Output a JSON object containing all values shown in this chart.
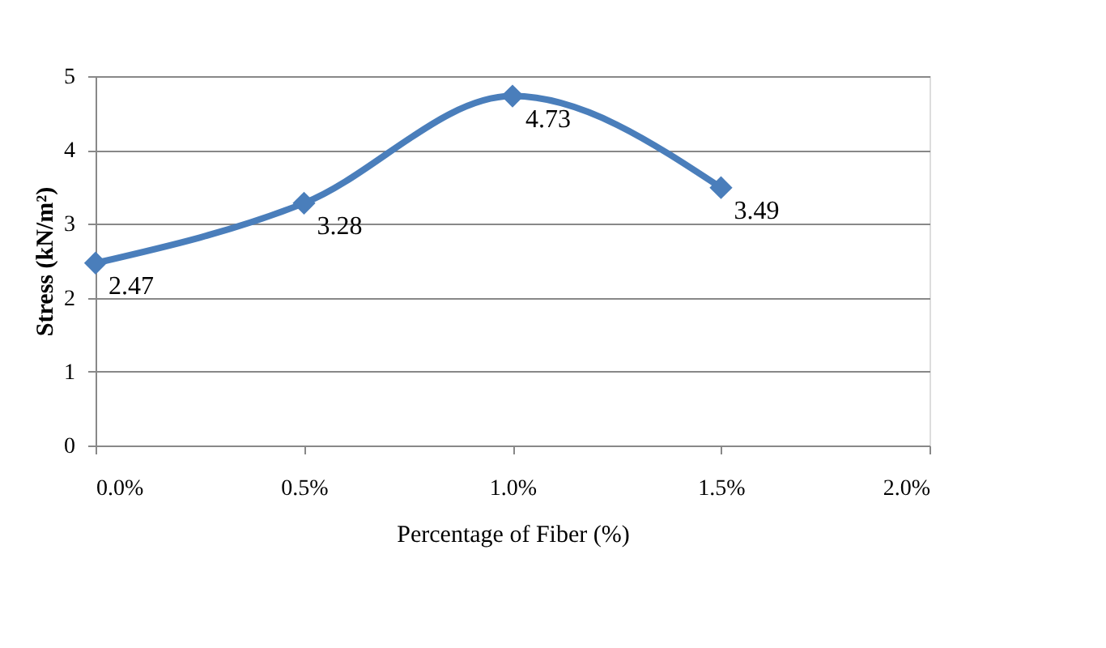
{
  "chart_data": {
    "type": "line",
    "xlabel": "Percentage of Fiber (%)",
    "ylabel": "Stress (kN/m²)",
    "categories": [
      "0.0%",
      "0.5%",
      "1.0%",
      "1.5%",
      "2.0%"
    ],
    "series": [
      {
        "color": "#4a7ebb",
        "values": [
          2.47,
          3.28,
          4.73,
          3.49,
          null
        ]
      }
    ],
    "ylim": [
      0,
      5
    ],
    "yticks": [
      0,
      1,
      2,
      3,
      4,
      5
    ],
    "grid": "y",
    "marker": "diamond",
    "line_style": "solid",
    "data_labels": true,
    "legend": false
  }
}
